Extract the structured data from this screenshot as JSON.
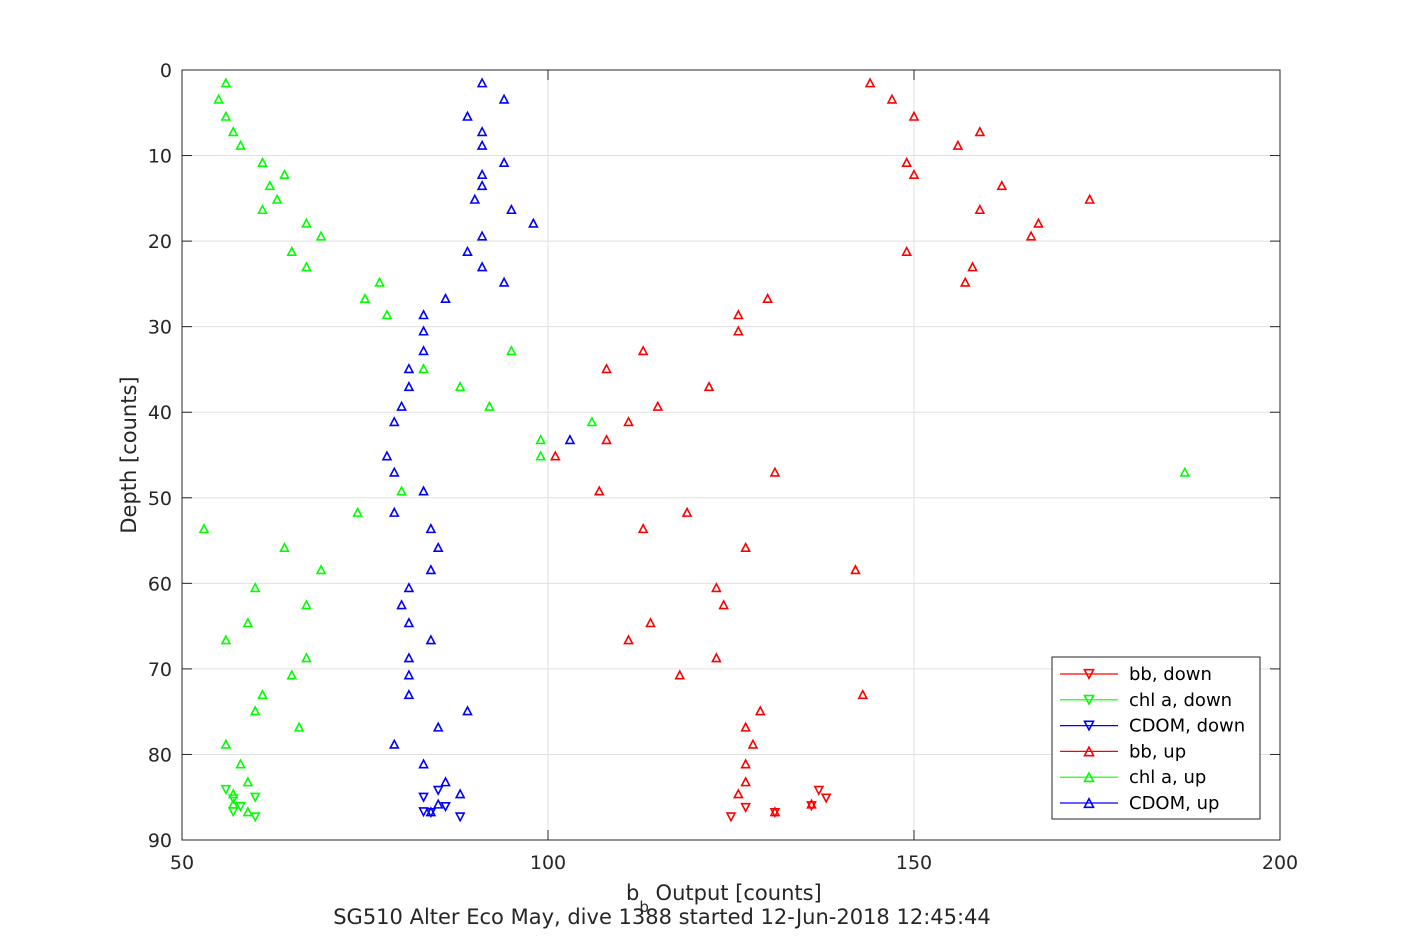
{
  "chart_data": {
    "type": "scatter",
    "title": "SG510 Alter Eco May, dive 1388 started 12-Jun-2018 12:45:44",
    "xlabel": "b​",
    "xlabel_sub": "b",
    "xlabel_rest": " Output [counts]",
    "ylabel": "Depth [counts]",
    "xlim": [
      50,
      200
    ],
    "ylim": [
      0,
      90
    ],
    "y_reversed": true,
    "grid": true,
    "legend_position": "bottom-right",
    "xticks": [
      50,
      100,
      150,
      200
    ],
    "yticks": [
      0,
      10,
      20,
      30,
      40,
      50,
      60,
      70,
      80,
      90
    ],
    "series": [
      {
        "name": "bb, down",
        "color": "#ff0000",
        "marker": "triangle-down",
        "points": [
          [
            125,
            87.3
          ],
          [
            127,
            86.2
          ],
          [
            131,
            86.8
          ],
          [
            136,
            86.0
          ],
          [
            137,
            84.2
          ],
          [
            138,
            85.1
          ]
        ]
      },
      {
        "name": "chl a, down",
        "color": "#00ff00",
        "marker": "triangle-down",
        "points": [
          [
            56,
            84.1
          ],
          [
            57,
            85.2
          ],
          [
            58,
            86.1
          ],
          [
            60,
            85.0
          ],
          [
            60,
            87.3
          ],
          [
            57,
            86.7
          ]
        ]
      },
      {
        "name": "CDOM, down",
        "color": "#0000ff",
        "marker": "triangle-down",
        "points": [
          [
            83,
            85.0
          ],
          [
            84,
            86.8
          ],
          [
            85,
            84.2
          ],
          [
            86,
            86.1
          ],
          [
            88,
            87.3
          ],
          [
            83,
            86.7
          ]
        ]
      },
      {
        "name": "bb, up",
        "color": "#ff0000",
        "marker": "triangle-up",
        "points": [
          [
            144,
            1.5
          ],
          [
            147,
            3.4
          ],
          [
            150,
            5.4
          ],
          [
            159,
            7.2
          ],
          [
            156,
            8.8
          ],
          [
            149,
            10.8
          ],
          [
            150,
            12.2
          ],
          [
            162,
            13.5
          ],
          [
            174,
            15.1
          ],
          [
            159,
            16.3
          ],
          [
            167,
            17.9
          ],
          [
            166,
            19.4
          ],
          [
            149,
            21.2
          ],
          [
            158,
            23.0
          ],
          [
            157,
            24.8
          ],
          [
            130,
            26.7
          ],
          [
            126,
            28.6
          ],
          [
            126,
            30.5
          ],
          [
            113,
            32.8
          ],
          [
            108,
            34.9
          ],
          [
            122,
            37.0
          ],
          [
            115,
            39.3
          ],
          [
            111,
            41.1
          ],
          [
            108,
            43.2
          ],
          [
            101,
            45.1
          ],
          [
            131,
            47.0
          ],
          [
            107,
            49.2
          ],
          [
            119,
            51.7
          ],
          [
            113,
            53.6
          ],
          [
            127,
            55.8
          ],
          [
            142,
            58.4
          ],
          [
            123,
            60.5
          ],
          [
            124,
            62.5
          ],
          [
            114,
            64.6
          ],
          [
            111,
            66.6
          ],
          [
            123,
            68.7
          ],
          [
            118,
            70.7
          ],
          [
            143,
            73.0
          ],
          [
            129,
            74.9
          ],
          [
            127,
            76.8
          ],
          [
            128,
            78.8
          ],
          [
            127,
            81.1
          ],
          [
            127,
            83.2
          ],
          [
            126,
            84.6
          ],
          [
            136,
            85.8
          ],
          [
            131,
            86.7
          ]
        ]
      },
      {
        "name": "chl a, up",
        "color": "#00ff00",
        "marker": "triangle-up",
        "points": [
          [
            56,
            1.5
          ],
          [
            55,
            3.4
          ],
          [
            56,
            5.4
          ],
          [
            57,
            7.2
          ],
          [
            58,
            8.8
          ],
          [
            61,
            10.8
          ],
          [
            64,
            12.2
          ],
          [
            62,
            13.5
          ],
          [
            63,
            15.1
          ],
          [
            61,
            16.3
          ],
          [
            67,
            17.9
          ],
          [
            69,
            19.4
          ],
          [
            65,
            21.2
          ],
          [
            67,
            23.0
          ],
          [
            77,
            24.8
          ],
          [
            75,
            26.7
          ],
          [
            78,
            28.6
          ],
          [
            95,
            32.8
          ],
          [
            83,
            34.9
          ],
          [
            88,
            37.0
          ],
          [
            92,
            39.3
          ],
          [
            106,
            41.1
          ],
          [
            99,
            43.2
          ],
          [
            99,
            45.1
          ],
          [
            187,
            47.0
          ],
          [
            80,
            49.2
          ],
          [
            74,
            51.7
          ],
          [
            53,
            53.6
          ],
          [
            64,
            55.8
          ],
          [
            69,
            58.4
          ],
          [
            60,
            60.5
          ],
          [
            67,
            62.5
          ],
          [
            59,
            64.6
          ],
          [
            56,
            66.6
          ],
          [
            67,
            68.7
          ],
          [
            65,
            70.7
          ],
          [
            61,
            73.0
          ],
          [
            60,
            74.9
          ],
          [
            66,
            76.8
          ],
          [
            56,
            78.8
          ],
          [
            58,
            81.1
          ],
          [
            59,
            83.2
          ],
          [
            57,
            84.6
          ],
          [
            57,
            85.8
          ],
          [
            59,
            86.7
          ]
        ]
      },
      {
        "name": "CDOM, up",
        "color": "#0000ff",
        "marker": "triangle-up",
        "points": [
          [
            91,
            1.5
          ],
          [
            94,
            3.4
          ],
          [
            89,
            5.4
          ],
          [
            91,
            7.2
          ],
          [
            91,
            8.8
          ],
          [
            94,
            10.8
          ],
          [
            91,
            12.2
          ],
          [
            91,
            13.5
          ],
          [
            90,
            15.1
          ],
          [
            95,
            16.3
          ],
          [
            98,
            17.9
          ],
          [
            91,
            19.4
          ],
          [
            89,
            21.2
          ],
          [
            91,
            23.0
          ],
          [
            94,
            24.8
          ],
          [
            86,
            26.7
          ],
          [
            83,
            28.6
          ],
          [
            83,
            30.5
          ],
          [
            83,
            32.8
          ],
          [
            81,
            34.9
          ],
          [
            81,
            37.0
          ],
          [
            80,
            39.3
          ],
          [
            79,
            41.1
          ],
          [
            103,
            43.2
          ],
          [
            78,
            45.1
          ],
          [
            79,
            47.0
          ],
          [
            83,
            49.2
          ],
          [
            79,
            51.7
          ],
          [
            84,
            53.6
          ],
          [
            85,
            55.8
          ],
          [
            84,
            58.4
          ],
          [
            81,
            60.5
          ],
          [
            80,
            62.5
          ],
          [
            81,
            64.6
          ],
          [
            84,
            66.6
          ],
          [
            81,
            68.7
          ],
          [
            81,
            70.7
          ],
          [
            81,
            73.0
          ],
          [
            89,
            74.9
          ],
          [
            85,
            76.8
          ],
          [
            79,
            78.8
          ],
          [
            83,
            81.1
          ],
          [
            86,
            83.2
          ],
          [
            88,
            84.6
          ],
          [
            85,
            85.8
          ],
          [
            84,
            86.7
          ]
        ]
      }
    ]
  }
}
